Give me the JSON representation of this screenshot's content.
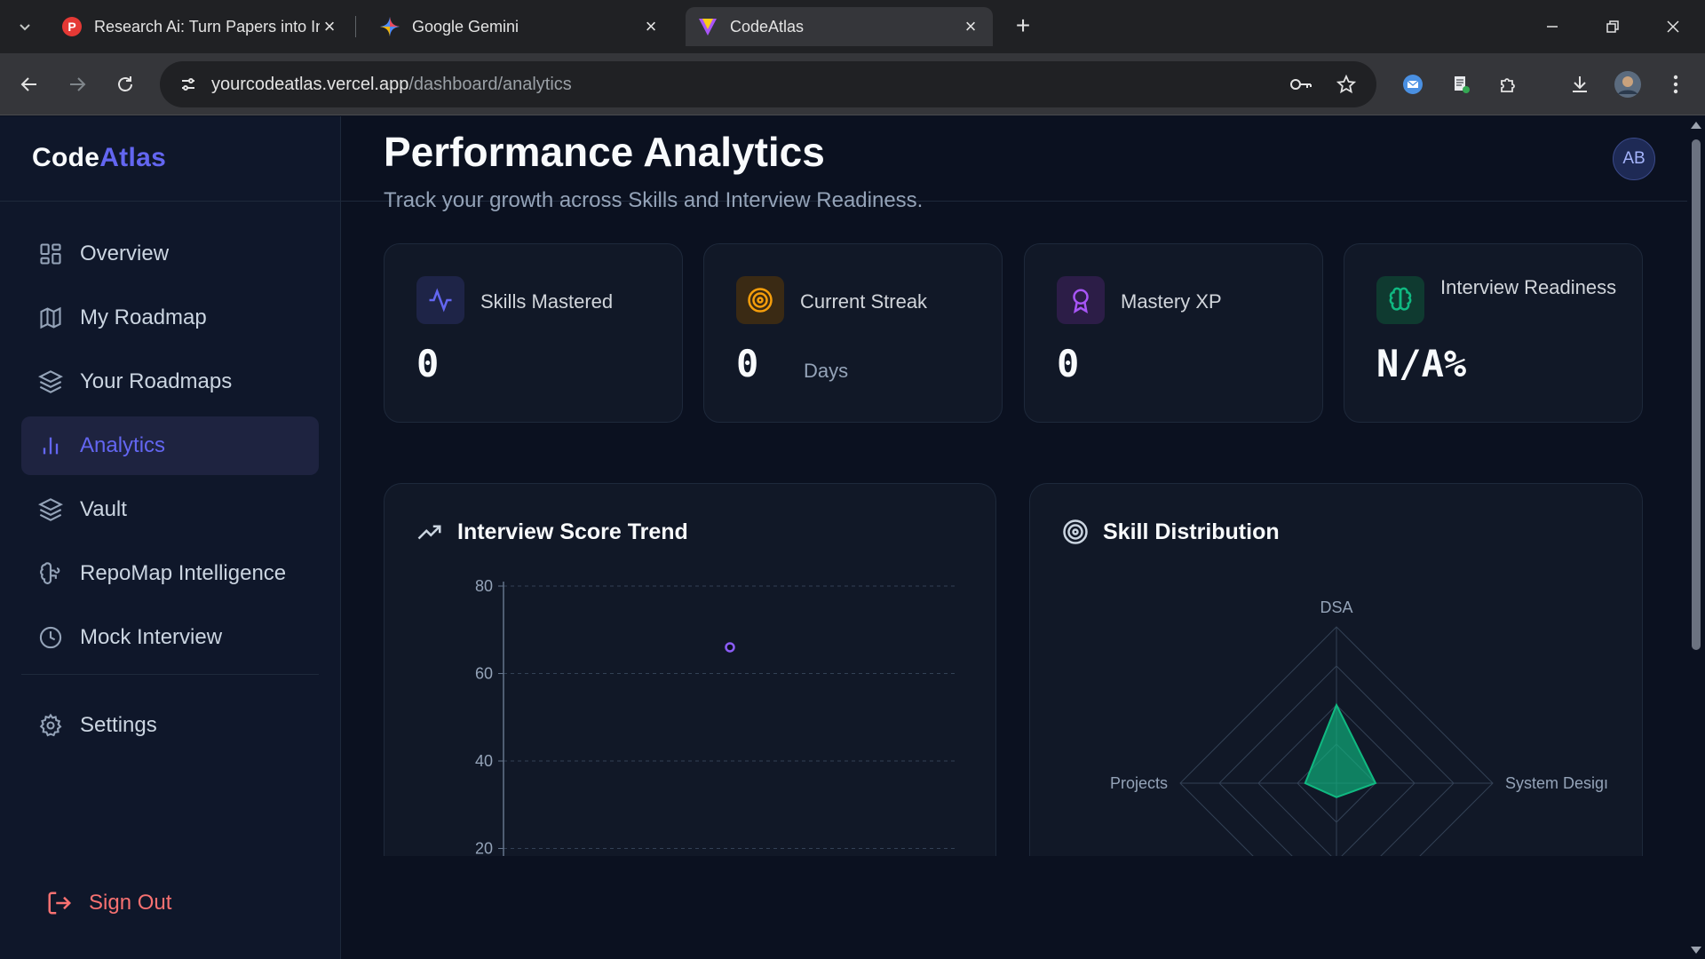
{
  "browser": {
    "tabs": [
      {
        "title": "Research Ai: Turn Papers into In",
        "favicon": "research-ai-favicon",
        "active": false
      },
      {
        "title": "Google Gemini",
        "favicon": "gemini-favicon",
        "active": false
      },
      {
        "title": "CodeAtlas",
        "favicon": "codeatlas-favicon",
        "active": true
      }
    ],
    "url_host": "yourcodeatlas.vercel.app",
    "url_path": "/dashboard/analytics"
  },
  "brand": {
    "part1": "Code",
    "part2": "Atlas"
  },
  "user": {
    "initials": "AB"
  },
  "sidebar": {
    "items": [
      {
        "label": "Overview",
        "icon": "grid-icon"
      },
      {
        "label": "My Roadmap",
        "icon": "map-icon"
      },
      {
        "label": "Your Roadmaps",
        "icon": "layers-icon"
      },
      {
        "label": "Analytics",
        "icon": "bar-chart-icon",
        "active": true
      },
      {
        "label": "Vault",
        "icon": "layers-icon"
      },
      {
        "label": "RepoMap Intelligence",
        "icon": "brain-icon"
      },
      {
        "label": "Mock Interview",
        "icon": "clock-icon"
      }
    ],
    "settings_label": "Settings",
    "signout_label": "Sign Out"
  },
  "page": {
    "title": "Performance Analytics",
    "subtitle": "Track your growth across Skills and Interview Readiness."
  },
  "stats": [
    {
      "label": "Skills Mastered",
      "value": "0",
      "unit": "",
      "icon": "activity-icon",
      "color": "#6366f1"
    },
    {
      "label": "Current Streak",
      "value": "0",
      "unit": "Days",
      "icon": "target-icon",
      "color": "#f59e0b"
    },
    {
      "label": "Mastery XP",
      "value": "0",
      "unit": "",
      "icon": "award-icon",
      "color": "#a855f7"
    },
    {
      "label": "Interview Readiness",
      "value": "N/A%",
      "unit": "",
      "icon": "brain-icon",
      "color": "#10b981"
    }
  ],
  "panels": {
    "trend_title": "Interview Score Trend",
    "skills_title": "Skill Distribution"
  },
  "chart_data": [
    {
      "type": "scatter",
      "title": "Interview Score Trend",
      "y_ticks": [
        80,
        60,
        40,
        20
      ],
      "ylim": [
        20,
        80
      ],
      "grid": "dashed horizontal",
      "points": [
        {
          "x": 1,
          "y": 66
        }
      ],
      "color": "#8b5cf6"
    },
    {
      "type": "radar",
      "title": "Skill Distribution",
      "axes_visible": [
        "DSA",
        "System Desigı",
        "Projects"
      ],
      "values_relative": {
        "DSA": 0.5,
        "System Desigı": 0.25,
        "Projects": 0.2
      },
      "color": "#10b981"
    }
  ]
}
